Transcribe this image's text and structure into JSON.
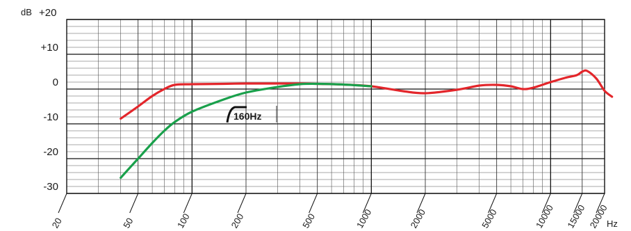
{
  "chart_data": {
    "type": "line",
    "xscale": "log",
    "xlim": [
      20,
      20000
    ],
    "ylim": [
      -30,
      20
    ],
    "grid": true,
    "ylabel": "dB",
    "xunit": "Hz",
    "y_ticks": [
      {
        "value": 20,
        "label": "+20"
      },
      {
        "value": 10,
        "label": "+10"
      },
      {
        "value": 0,
        "label": "0"
      },
      {
        "value": -10,
        "label": "-10"
      },
      {
        "value": -20,
        "label": "-20"
      },
      {
        "value": -30,
        "label": "-30"
      }
    ],
    "x_ticks": [
      {
        "value": 20,
        "label": "20"
      },
      {
        "value": 50,
        "label": "50"
      },
      {
        "value": 100,
        "label": "100"
      },
      {
        "value": 200,
        "label": "200"
      },
      {
        "value": 500,
        "label": "500"
      },
      {
        "value": 1000,
        "label": "1000"
      },
      {
        "value": 2000,
        "label": "2000"
      },
      {
        "value": 5000,
        "label": "5000"
      },
      {
        "value": 10000,
        "label": "10000"
      },
      {
        "value": 15000,
        "label": "15000"
      },
      {
        "value": 20000,
        "label": "20000"
      }
    ],
    "annotation": "160Hz",
    "series": [
      {
        "color": "#e3262b",
        "points": [
          [
            40,
            -8.5
          ],
          [
            50,
            -5
          ],
          [
            60,
            -2
          ],
          [
            70,
            0
          ],
          [
            80,
            1.2
          ],
          [
            100,
            1.4
          ],
          [
            150,
            1.5
          ],
          [
            200,
            1.6
          ],
          [
            300,
            1.6
          ],
          [
            400,
            1.6
          ],
          [
            500,
            1.5
          ],
          [
            700,
            1.3
          ],
          [
            1000,
            0.8
          ],
          [
            1500,
            -0.6
          ],
          [
            2000,
            -1.2
          ],
          [
            3000,
            -0.2
          ],
          [
            4000,
            1.0
          ],
          [
            5000,
            1.2
          ],
          [
            6000,
            0.8
          ],
          [
            7000,
            0.0
          ],
          [
            8000,
            0.4
          ],
          [
            10000,
            2.0
          ],
          [
            12000,
            3.2
          ],
          [
            14000,
            4.0
          ],
          [
            15000,
            5.0
          ],
          [
            16000,
            5.2
          ],
          [
            18000,
            3.0
          ],
          [
            20000,
            -0.5
          ],
          [
            22000,
            -2.2
          ]
        ]
      },
      {
        "color": "#19a04b",
        "points": [
          [
            40,
            -25.5
          ],
          [
            50,
            -20
          ],
          [
            60,
            -15.5
          ],
          [
            70,
            -12
          ],
          [
            80,
            -9.5
          ],
          [
            100,
            -6.5
          ],
          [
            150,
            -3
          ],
          [
            200,
            -1
          ],
          [
            300,
            0.6
          ],
          [
            400,
            1.4
          ],
          [
            500,
            1.5
          ],
          [
            700,
            1.3
          ],
          [
            1000,
            0.8
          ]
        ]
      }
    ]
  }
}
